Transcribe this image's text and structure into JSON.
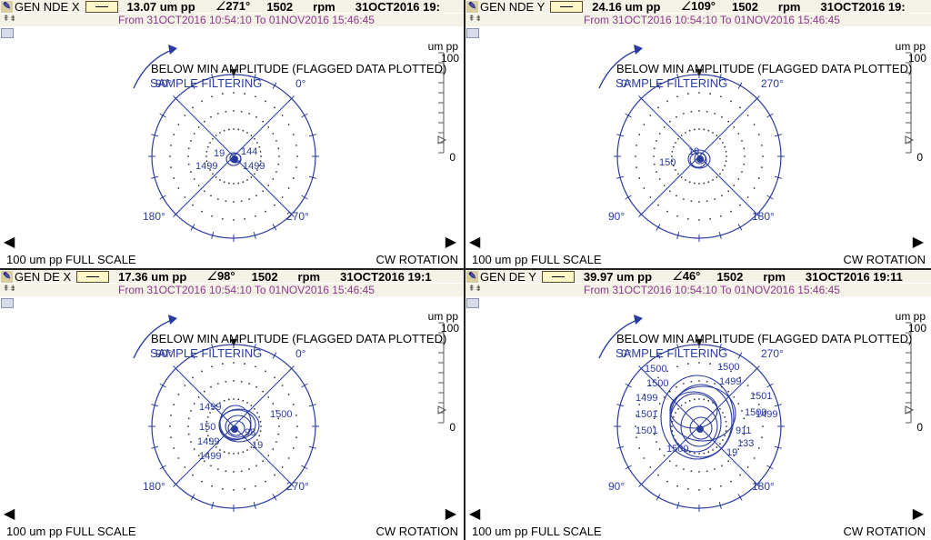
{
  "common": {
    "date_range": "From 31OCT2016 10:54:10 To 01NOV2016 15:46:45",
    "rpm_label": "rpm",
    "units": "um pp",
    "full_scale": "100 um pp   FULL SCALE",
    "rotation": "CW ROTATION",
    "scale_max": "100",
    "scale_min": "0",
    "msg_line1": "BELOW MIN AMPLITUDE (FLAGGED DATA PLOTTED)",
    "msg_line2": "SAMPLE FILTERING",
    "icons": [
      "pen-icon",
      "scroll-icon",
      "left-arrow-icon",
      "right-arrow-icon",
      "rotation-arrow-icon"
    ],
    "colors": {
      "plot": "#2a3ba0",
      "header_bg": "#f4f1e6",
      "date_text": "#8a3a8a"
    }
  },
  "panes": [
    {
      "name": "GEN NDE X",
      "amplitude": "13.07",
      "phase": "271°",
      "rpm": "1502",
      "datetime": "31OCT2016 19:",
      "angles": {
        "top": "0°",
        "left": "90°",
        "bottom_left": "180°",
        "bottom_right": "270°"
      },
      "point_labels": [
        "19",
        "144",
        "1499",
        "1499"
      ]
    },
    {
      "name": "GEN NDE Y",
      "amplitude": "24.16",
      "phase": "109°",
      "rpm": "1502",
      "datetime": "31OCT2016 19:",
      "angles": {
        "top": "270°",
        "left": "0°",
        "bottom_left": "90°",
        "bottom_right": "180°"
      },
      "point_labels": [
        "19",
        "150"
      ]
    },
    {
      "name": "GEN DE X",
      "amplitude": "17.36",
      "phase": "98°",
      "rpm": "1502",
      "datetime": "31OCT2016 19:1",
      "angles": {
        "top": "0°",
        "left": "90°",
        "bottom_left": "180°",
        "bottom_right": "270°"
      },
      "point_labels": [
        "1499",
        "1499",
        "1500",
        "150",
        "98",
        "1499",
        "19"
      ]
    },
    {
      "name": "GEN DE Y",
      "amplitude": "39.97",
      "phase": "46°",
      "rpm": "1502",
      "datetime": "31OCT2016 19:11",
      "angles": {
        "top": "270°",
        "left": "0°",
        "bottom_left": "90°",
        "bottom_right": "180°"
      },
      "point_labels": [
        "1500",
        "1500",
        "1500",
        "1499",
        "1499",
        "1501",
        "1500",
        "1499",
        "1501",
        "1501",
        "911",
        "1500",
        "133",
        "19"
      ]
    }
  ]
}
